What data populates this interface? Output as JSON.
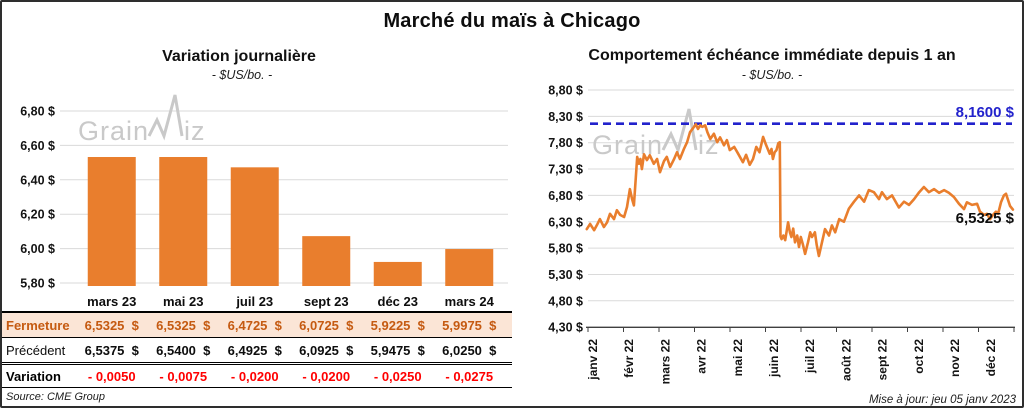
{
  "title": "Marché du maïs à Chicago",
  "branding": {
    "watermark_left": "Grain",
    "watermark_right": "iz",
    "watermark_full": "GrainWiz"
  },
  "footer": {
    "updated": "Mise à jour: jeu 05 janv 2023"
  },
  "table": {
    "header": [
      "mars 23",
      "mai 23",
      "juil 23",
      "sept 23",
      "déc 23",
      "mars 24"
    ],
    "rows": [
      {
        "key": "fermeture",
        "label": "Fermeture",
        "values": [
          "6,5325  $",
          "6,5325  $",
          "6,4725  $",
          "6,0725  $",
          "5,9225  $",
          "5,9975  $"
        ]
      },
      {
        "key": "precedent",
        "label": "Précédent",
        "values": [
          "6,5375  $",
          "6,5400  $",
          "6,4925  $",
          "6,0925  $",
          "5,9475  $",
          "6,0250  $"
        ]
      },
      {
        "key": "variation",
        "label": "Variation",
        "values": [
          "- 0,0050",
          "- 0,0075",
          "- 0,0200",
          "- 0,0200",
          "- 0,0250",
          "- 0,0275"
        ]
      }
    ],
    "source": "Source: CME Group"
  },
  "chart_data": [
    {
      "type": "bar",
      "title": "Variation journalière",
      "subtitle": "- $US/bo. -",
      "xlabel": "",
      "ylabel": "",
      "categories": [
        "mars 23",
        "mai 23",
        "juil 23",
        "sept 23",
        "déc 23",
        "mars 24"
      ],
      "values": [
        6.5325,
        6.5325,
        6.4725,
        6.0725,
        5.9225,
        5.9975
      ],
      "yticks": [
        6.8,
        6.6,
        6.4,
        6.2,
        6.0,
        5.8
      ],
      "ytick_labels": [
        "6,80 $",
        "6,60 $",
        "6,40 $",
        "6,20 $",
        "6,00 $",
        "5,80 $"
      ],
      "ylim": [
        5.78,
        6.92
      ],
      "bar_color": "#E97E2D",
      "grid": true,
      "legend": false
    },
    {
      "type": "line",
      "title": "Comportement échéance immédiate depuis 1 an",
      "subtitle": "- $US/bo. -",
      "xlabel": "",
      "ylabel": "",
      "x_tick_labels": [
        "janv 22",
        "févr 22",
        "mars 22",
        "avr 22",
        "mai 22",
        "juin 22",
        "juil 22",
        "août 22",
        "sept 22",
        "oct 22",
        "nov 22",
        "déc 22"
      ],
      "yticks": [
        8.8,
        8.3,
        7.8,
        7.3,
        6.8,
        6.3,
        5.8,
        5.3,
        4.8,
        4.3
      ],
      "ytick_labels": [
        "8,80 $",
        "8,30 $",
        "7,80 $",
        "7,30 $",
        "6,80 $",
        "6,30 $",
        "5,80 $",
        "5,30 $",
        "4,80 $",
        "4,30 $"
      ],
      "ylim": [
        4.3,
        8.9
      ],
      "grid": true,
      "legend": false,
      "ref_line": {
        "value": 8.16,
        "label": "8,1600 $",
        "color": "#2222CC",
        "style": "dashed"
      },
      "end_label": {
        "value": 6.5325,
        "label": "6,5325 $"
      },
      "series": [
        {
          "name": "échéance immédiate",
          "color": "#E97E2D",
          "points": [
            [
              -0.17,
              6.16
            ],
            [
              -0.08,
              6.26
            ],
            [
              0.03,
              6.14
            ],
            [
              0.11,
              6.24
            ],
            [
              0.19,
              6.35
            ],
            [
              0.3,
              6.2
            ],
            [
              0.39,
              6.29
            ],
            [
              0.47,
              6.45
            ],
            [
              0.58,
              6.35
            ],
            [
              0.66,
              6.52
            ],
            [
              0.75,
              6.43
            ],
            [
              0.86,
              6.39
            ],
            [
              0.94,
              6.58
            ],
            [
              1.02,
              6.92
            ],
            [
              1.08,
              6.73
            ],
            [
              1.13,
              6.61
            ],
            [
              1.18,
              7.11
            ],
            [
              1.22,
              7.53
            ],
            [
              1.27,
              7.4
            ],
            [
              1.31,
              7.49
            ],
            [
              1.35,
              7.3
            ],
            [
              1.41,
              7.58
            ],
            [
              1.49,
              7.47
            ],
            [
              1.57,
              7.56
            ],
            [
              1.68,
              7.4
            ],
            [
              1.77,
              7.49
            ],
            [
              1.85,
              7.24
            ],
            [
              1.96,
              7.45
            ],
            [
              2.04,
              7.53
            ],
            [
              2.13,
              7.34
            ],
            [
              2.24,
              7.49
            ],
            [
              2.32,
              7.62
            ],
            [
              2.4,
              7.49
            ],
            [
              2.51,
              7.68
            ],
            [
              2.6,
              7.81
            ],
            [
              2.68,
              8.0
            ],
            [
              2.79,
              8.1
            ],
            [
              2.84,
              8.15
            ],
            [
              2.9,
              8.06
            ],
            [
              2.96,
              8.13
            ],
            [
              3.02,
              8.1
            ],
            [
              3.1,
              8.13
            ],
            [
              3.16,
              8.0
            ],
            [
              3.24,
              7.87
            ],
            [
              3.34,
              7.97
            ],
            [
              3.43,
              7.81
            ],
            [
              3.51,
              7.9
            ],
            [
              3.62,
              7.75
            ],
            [
              3.7,
              7.85
            ],
            [
              3.78,
              7.66
            ],
            [
              3.9,
              7.72
            ],
            [
              4.01,
              7.59
            ],
            [
              4.14,
              7.43
            ],
            [
              4.23,
              7.57
            ],
            [
              4.33,
              7.38
            ],
            [
              4.42,
              7.49
            ],
            [
              4.51,
              7.72
            ],
            [
              4.6,
              7.62
            ],
            [
              4.7,
              7.91
            ],
            [
              4.78,
              7.76
            ],
            [
              4.88,
              7.59
            ],
            [
              4.93,
              7.68
            ],
            [
              4.97,
              7.49
            ],
            [
              5.02,
              7.62
            ],
            [
              5.07,
              7.66
            ],
            [
              5.12,
              7.79
            ],
            [
              5.16,
              7.81
            ],
            [
              5.18,
              6.02
            ],
            [
              5.21,
              5.97
            ],
            [
              5.26,
              6.04
            ],
            [
              5.31,
              5.95
            ],
            [
              5.39,
              6.29
            ],
            [
              5.44,
              6.1
            ],
            [
              5.48,
              6.01
            ],
            [
              5.53,
              6.17
            ],
            [
              5.58,
              5.91
            ],
            [
              5.64,
              6.04
            ],
            [
              5.69,
              5.82
            ],
            [
              5.74,
              6.01
            ],
            [
              5.8,
              5.86
            ],
            [
              5.86,
              5.69
            ],
            [
              5.94,
              5.91
            ],
            [
              6.0,
              6.1
            ],
            [
              6.05,
              6.01
            ],
            [
              6.13,
              6.1
            ],
            [
              6.18,
              5.86
            ],
            [
              6.24,
              5.65
            ],
            [
              6.33,
              5.92
            ],
            [
              6.41,
              6.16
            ],
            [
              6.52,
              6.04
            ],
            [
              6.6,
              6.23
            ],
            [
              6.69,
              6.1
            ],
            [
              6.8,
              6.35
            ],
            [
              6.93,
              6.3
            ],
            [
              7.07,
              6.55
            ],
            [
              7.21,
              6.68
            ],
            [
              7.35,
              6.8
            ],
            [
              7.49,
              6.68
            ],
            [
              7.62,
              6.9
            ],
            [
              7.76,
              6.86
            ],
            [
              7.9,
              6.73
            ],
            [
              7.98,
              6.86
            ],
            [
              8.12,
              6.73
            ],
            [
              8.26,
              6.8
            ],
            [
              8.45,
              6.57
            ],
            [
              8.59,
              6.68
            ],
            [
              8.73,
              6.62
            ],
            [
              8.87,
              6.73
            ],
            [
              9.01,
              6.86
            ],
            [
              9.14,
              6.96
            ],
            [
              9.28,
              6.86
            ],
            [
              9.42,
              6.92
            ],
            [
              9.56,
              6.85
            ],
            [
              9.7,
              6.9
            ],
            [
              9.83,
              6.85
            ],
            [
              9.97,
              6.77
            ],
            [
              10.11,
              6.64
            ],
            [
              10.25,
              6.54
            ],
            [
              10.33,
              6.67
            ],
            [
              10.47,
              6.62
            ],
            [
              10.61,
              6.64
            ],
            [
              10.69,
              6.49
            ],
            [
              10.8,
              6.43
            ],
            [
              10.88,
              6.45
            ],
            [
              10.97,
              6.35
            ],
            [
              11.05,
              6.43
            ],
            [
              11.13,
              6.49
            ],
            [
              11.19,
              6.45
            ],
            [
              11.27,
              6.67
            ],
            [
              11.35,
              6.8
            ],
            [
              11.41,
              6.83
            ],
            [
              11.52,
              6.6
            ],
            [
              11.6,
              6.53
            ]
          ]
        }
      ]
    }
  ]
}
